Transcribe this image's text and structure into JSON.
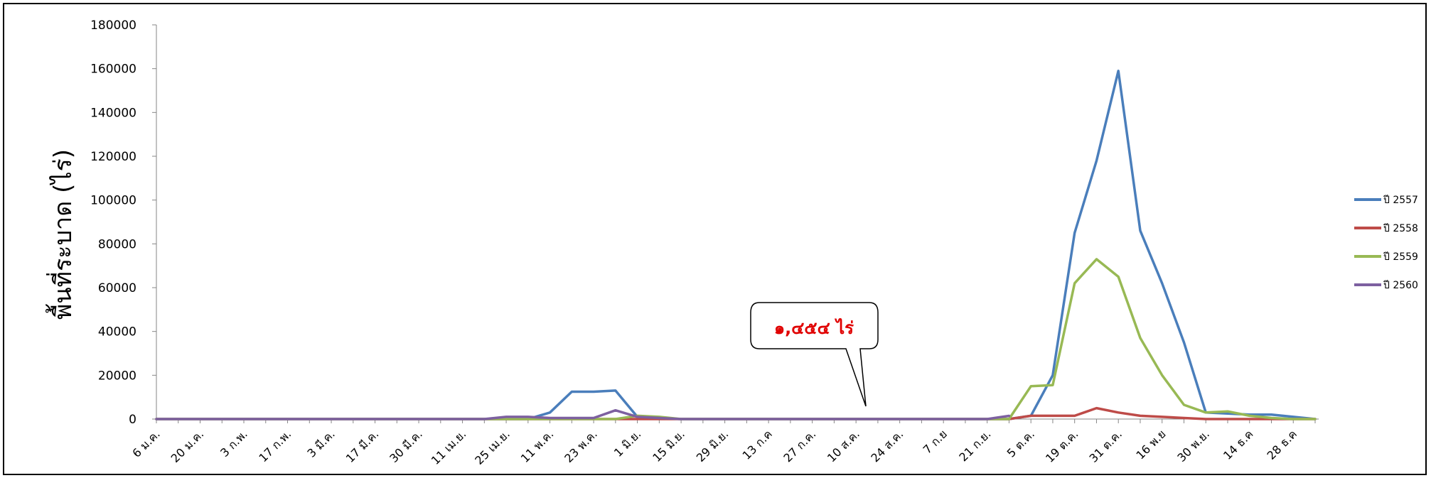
{
  "chart_data": {
    "type": "line",
    "ylabel": "พื้นที่ระบาด (ไร่)",
    "xlabel": "",
    "ylim": [
      0,
      180000
    ],
    "yticks": [
      0,
      20000,
      40000,
      60000,
      80000,
      100000,
      120000,
      140000,
      160000,
      180000
    ],
    "x_tick_labels": [
      "6 ม.ค.",
      "20 ม.ค.",
      "3 ก.พ.",
      "17 ก.พ.",
      "3 มี.ค.",
      "17 มี.ค.",
      "30 มี.ค.",
      "11 เม.ย.",
      "25 เม.ย.",
      "11 พ.ค.",
      "23 พ.ค.",
      "1 มิ.ย.",
      "15 มิ.ย.",
      "29 มิ.ย.",
      "13 ก.ค",
      "27 ก.ค.",
      "10 ส.ค.",
      "24 ส.ค.",
      "7 ก.ย",
      "21 ก.ย.",
      "5 ต.ค.",
      "19 ต.ค.",
      "31 ต.ค.",
      "16 พ.ย",
      "30 พ.ย.",
      "14 ธ.ค",
      "28 ธ.ค"
    ],
    "n_points": 54,
    "grid": false,
    "legend_position": "right",
    "series": [
      {
        "name": "ปี 2557",
        "color": "#4a7ebb",
        "values": [
          0,
          0,
          0,
          0,
          0,
          0,
          0,
          0,
          0,
          0,
          0,
          0,
          0,
          0,
          0,
          0,
          0,
          0,
          3000,
          12500,
          12500,
          13000,
          1000,
          500,
          0,
          0,
          0,
          0,
          0,
          0,
          0,
          0,
          0,
          0,
          0,
          0,
          0,
          0,
          0,
          0,
          1500,
          20000,
          85000,
          118000,
          159000,
          86000,
          62000,
          35000,
          3000,
          2500,
          2000,
          2000,
          1000,
          0
        ]
      },
      {
        "name": "ปี 2558",
        "color": "#be4b48",
        "values": [
          0,
          0,
          0,
          0,
          0,
          0,
          0,
          0,
          0,
          0,
          0,
          0,
          0,
          0,
          0,
          0,
          0,
          0,
          0,
          0,
          0,
          0,
          0,
          0,
          0,
          0,
          0,
          0,
          0,
          0,
          0,
          0,
          0,
          0,
          0,
          0,
          0,
          0,
          0,
          0,
          1500,
          1500,
          1500,
          5000,
          3000,
          1500,
          1000,
          500,
          0,
          0,
          0,
          0,
          0,
          0
        ]
      },
      {
        "name": "ปี 2559",
        "color": "#98b954",
        "values": [
          0,
          0,
          0,
          0,
          0,
          0,
          0,
          0,
          0,
          0,
          0,
          0,
          0,
          0,
          0,
          0,
          0,
          0,
          0,
          0,
          0,
          0,
          1500,
          1000,
          0,
          0,
          0,
          0,
          0,
          0,
          0,
          0,
          0,
          0,
          0,
          0,
          0,
          0,
          0,
          0,
          15000,
          15500,
          62000,
          73000,
          65000,
          37000,
          20000,
          6500,
          3000,
          3500,
          1500,
          500,
          0,
          0
        ]
      },
      {
        "name": "ปี 2560",
        "color": "#7d60a0",
        "values": [
          0,
          0,
          0,
          0,
          0,
          0,
          0,
          0,
          0,
          0,
          0,
          0,
          0,
          0,
          0,
          0,
          1000,
          1000,
          500,
          500,
          500,
          4000,
          1000,
          500,
          0,
          0,
          0,
          0,
          0,
          0,
          0,
          0,
          0,
          0,
          0,
          0,
          0,
          0,
          0,
          1454
        ]
      }
    ],
    "annotation": {
      "text": "๑,๔๕๔ ไร่",
      "color": "#e00000"
    }
  }
}
